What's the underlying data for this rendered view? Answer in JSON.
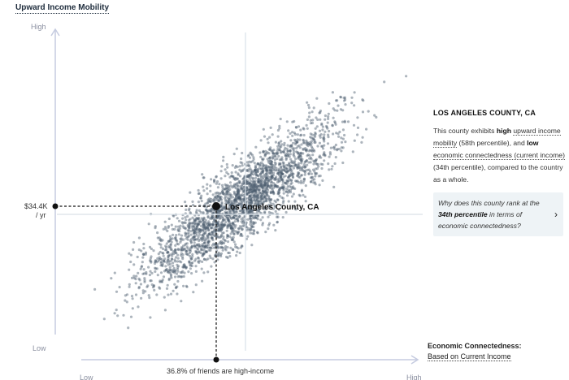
{
  "chart_data": {
    "type": "scatter",
    "title": "Upward Income Mobility",
    "ylabel": "Upward Income Mobility",
    "xlabel": "Economic Connectedness:",
    "xlabel_sub": "Based on Current Income",
    "y_tick_high": "High",
    "y_tick_low": "Low",
    "x_tick_low": "Low",
    "x_tick_high": "High",
    "xlim": [
      0,
      100
    ],
    "ylim": [
      0,
      100
    ],
    "highlight": {
      "label": "Los Angeles County, CA",
      "x": 34,
      "y": 58,
      "y_value_label": "$34.4K",
      "y_value_unit": "/ yr",
      "x_value_label": "36.8% of friends are high-income"
    },
    "reference_lines": {
      "x": 50,
      "y": 50
    },
    "point_count": 2600,
    "trend": "positive correlation"
  },
  "info": {
    "title": "LOS ANGELES COUNTY, CA",
    "body_1": "This county exhibits ",
    "high": "high",
    "upward_income_mobility": "upward income mobility",
    "pct_1": " (58th percentile), and ",
    "low": "low",
    "economic_connectedness": "economic connectedness (current income)",
    "pct_2": " (34th percentile), compared to the country as a whole.",
    "question_1": "Why does this county rank at the ",
    "question_bold": "34th percentile",
    "question_2": " in terms of economic connectedness?",
    "chevron": "›"
  },
  "colors": {
    "point": "#4a5a6c",
    "axis": "#c5cbe0",
    "refline": "#d9e1e8"
  }
}
